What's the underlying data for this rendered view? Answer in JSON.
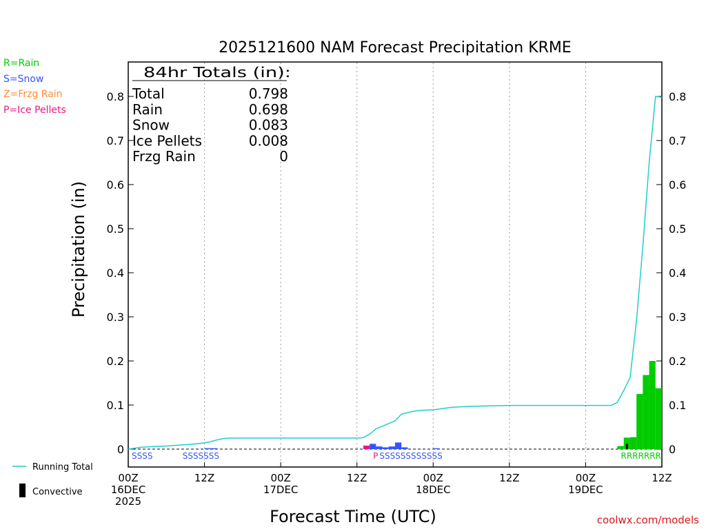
{
  "chart_data": {
    "type": "bar",
    "title": "2025121600 NAM Forecast Precipitation KRME",
    "xlabel": "Forecast Time (UTC)",
    "ylabel": "Precipitation (in)",
    "ylim": [
      0,
      0.88
    ],
    "xlim_hours": [
      0,
      84
    ],
    "y_ticks": [
      "0",
      "0.1",
      "0.2",
      "0.3",
      "0.4",
      "0.5",
      "0.6",
      "0.7",
      "0.8"
    ],
    "y_tick_values": [
      0,
      0.1,
      0.2,
      0.3,
      0.4,
      0.5,
      0.6,
      0.7,
      0.8
    ],
    "x_ticks": [
      {
        "hour": 0,
        "line1": "00Z",
        "line2": "16DEC",
        "line3": "2025"
      },
      {
        "hour": 12,
        "line1": "12Z",
        "line2": "",
        "line3": ""
      },
      {
        "hour": 24,
        "line1": "00Z",
        "line2": "17DEC",
        "line3": ""
      },
      {
        "hour": 36,
        "line1": "12Z",
        "line2": "",
        "line3": ""
      },
      {
        "hour": 48,
        "line1": "00Z",
        "line2": "18DEC",
        "line3": ""
      },
      {
        "hour": 60,
        "line1": "12Z",
        "line2": "",
        "line3": ""
      },
      {
        "hour": 72,
        "line1": "00Z",
        "line2": "19DEC",
        "line3": ""
      },
      {
        "hour": 84,
        "line1": "12Z",
        "line2": "",
        "line3": ""
      }
    ],
    "grid": "vertical-dotted",
    "type_legend": [
      {
        "label": "R=Rain",
        "color": "#00cc00"
      },
      {
        "label": "S=Snow",
        "color": "#3355ff"
      },
      {
        "label": "Z=Frzg Rain",
        "color": "#ff8c33"
      },
      {
        "label": "P=Ice Pellets",
        "color": "#e6197f"
      }
    ],
    "line_legend": [
      {
        "label": "Running Total",
        "color": "#22cccc"
      },
      {
        "label": "Convective",
        "color": "#000000"
      }
    ],
    "totals": {
      "heading": "84hr Totals (in):",
      "rows": [
        {
          "label": "Total",
          "value": "0.798"
        },
        {
          "label": "Rain",
          "value": "0.698"
        },
        {
          "label": "Snow",
          "value": "0.083"
        },
        {
          "label": "Ice Pellets",
          "value": "0.008"
        },
        {
          "label": "Frzg Rain",
          "value": "0"
        }
      ]
    },
    "bars": [
      {
        "hour": 13,
        "value": 0.002,
        "ptype": "S"
      },
      {
        "hour": 14,
        "value": 0.002,
        "ptype": "S"
      },
      {
        "hour": 38,
        "value": 0.008,
        "ptype": "P"
      },
      {
        "hour": 39,
        "value": 0.012,
        "ptype": "S"
      },
      {
        "hour": 40,
        "value": 0.006,
        "ptype": "S"
      },
      {
        "hour": 41,
        "value": 0.004,
        "ptype": "S"
      },
      {
        "hour": 42,
        "value": 0.006,
        "ptype": "S"
      },
      {
        "hour": 43,
        "value": 0.015,
        "ptype": "S"
      },
      {
        "hour": 44,
        "value": 0.004,
        "ptype": "S"
      },
      {
        "hour": 49,
        "value": 0.002,
        "ptype": "S"
      },
      {
        "hour": 78,
        "value": 0.007,
        "ptype": "R"
      },
      {
        "hour": 79,
        "value": 0.026,
        "ptype": "R"
      },
      {
        "hour": 80,
        "value": 0.027,
        "ptype": "R"
      },
      {
        "hour": 81,
        "value": 0.125,
        "ptype": "R"
      },
      {
        "hour": 82,
        "value": 0.168,
        "ptype": "R"
      },
      {
        "hour": 83,
        "value": 0.2,
        "ptype": "R"
      },
      {
        "hour": 84,
        "value": 0.138,
        "ptype": "R"
      }
    ],
    "convective": [
      {
        "hour": 79,
        "value": 0.012
      }
    ],
    "running_total": {
      "x": [
        0,
        2,
        4,
        6,
        8,
        10,
        12,
        13,
        14,
        15,
        16,
        24,
        30,
        36,
        37,
        38,
        39,
        40,
        41,
        42,
        43,
        44,
        45,
        46,
        48,
        49,
        50,
        51,
        54,
        60,
        66,
        72,
        76,
        77,
        78,
        79,
        80,
        81,
        82,
        83,
        84
      ],
      "y": [
        0,
        0.004,
        0.006,
        0.007,
        0.009,
        0.011,
        0.014,
        0.017,
        0.021,
        0.024,
        0.025,
        0.025,
        0.025,
        0.025,
        0.026,
        0.034,
        0.046,
        0.052,
        0.058,
        0.064,
        0.079,
        0.083,
        0.086,
        0.088,
        0.089,
        0.091,
        0.093,
        0.095,
        0.097,
        0.099,
        0.099,
        0.099,
        0.099,
        0.106,
        0.133,
        0.162,
        0.29,
        0.46,
        0.65,
        0.8,
        0.798
      ]
    },
    "type_strips": [
      {
        "text": "SSSS",
        "start_hour": 0,
        "ptype": "S"
      },
      {
        "text": "SSSSSSS",
        "start_hour": 8,
        "ptype": "S"
      },
      {
        "text": "P",
        "start_hour": 38,
        "ptype": "P"
      },
      {
        "text": "SSSSSSSSSSSS",
        "start_hour": 39,
        "ptype": "S"
      },
      {
        "text": "RRRRRRR",
        "start_hour": 77,
        "ptype": "R"
      }
    ]
  },
  "credit": "coolwx.com/models"
}
